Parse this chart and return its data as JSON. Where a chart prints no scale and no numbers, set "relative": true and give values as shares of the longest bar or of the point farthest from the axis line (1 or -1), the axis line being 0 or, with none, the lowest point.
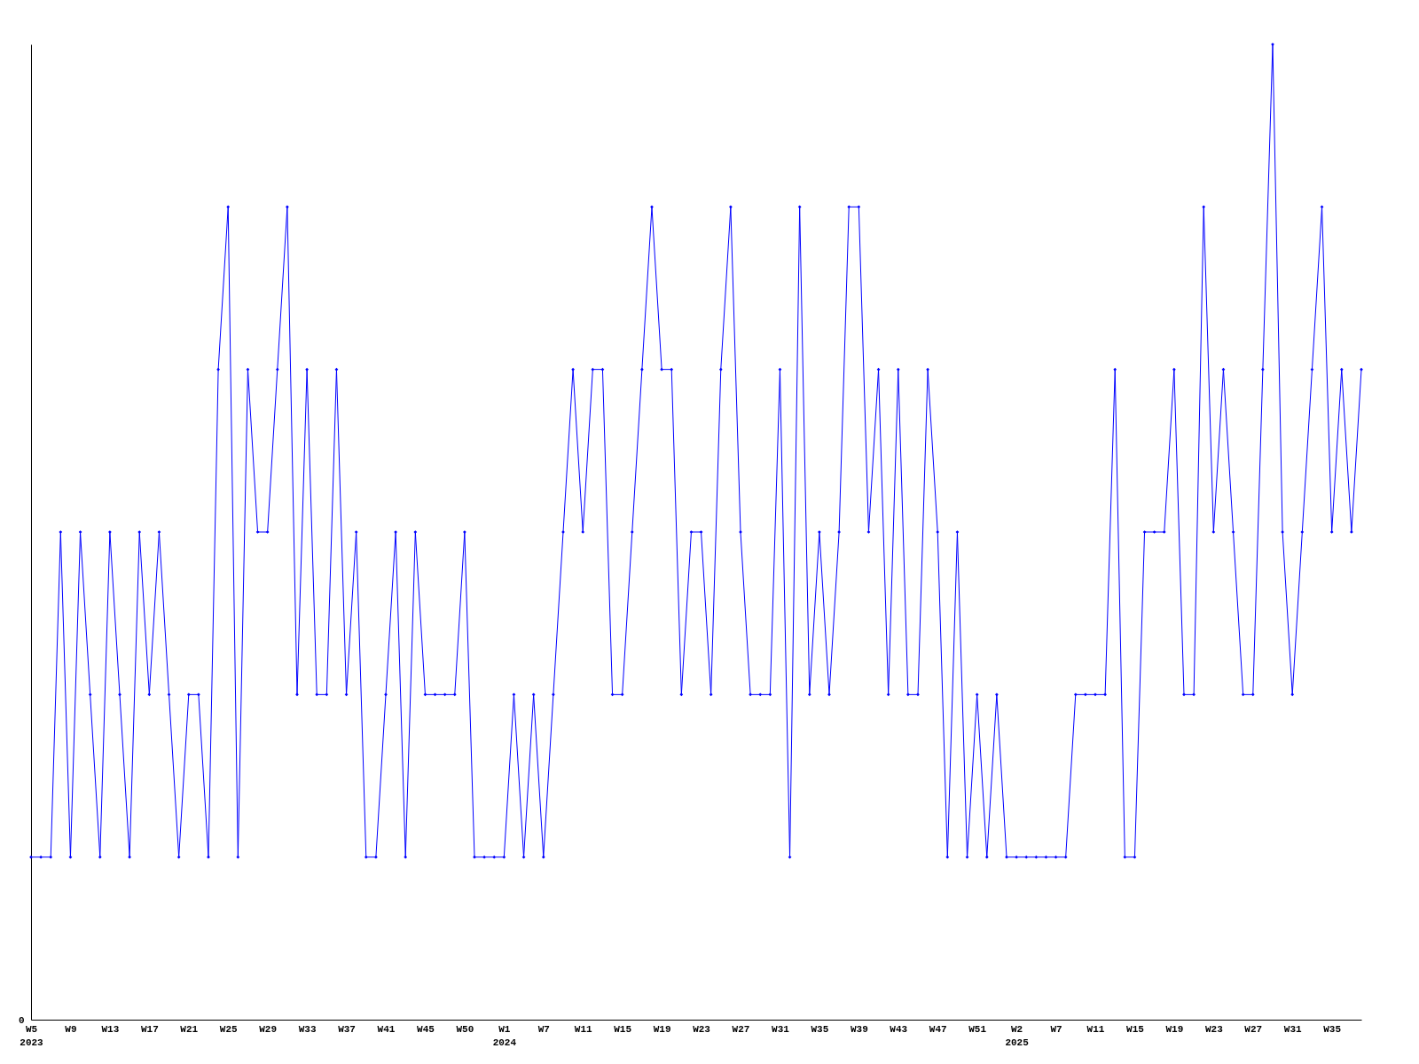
{
  "chart_data": {
    "type": "line",
    "relative": true,
    "marker": "diamond",
    "line_style": "solid",
    "grid": false,
    "annotations": [
      "0"
    ],
    "categories": [
      "W5\n2023",
      null,
      null,
      null,
      "W9",
      null,
      null,
      null,
      "W13",
      null,
      null,
      null,
      "W17",
      null,
      null,
      null,
      "W21",
      null,
      null,
      null,
      "W25",
      null,
      null,
      null,
      "W29",
      null,
      null,
      null,
      "W33",
      null,
      null,
      null,
      "W37",
      null,
      null,
      null,
      "W41",
      null,
      null,
      null,
      "W45",
      null,
      null,
      null,
      "W50",
      null,
      null,
      null,
      "W1\n2024",
      null,
      null,
      null,
      "W7",
      null,
      null,
      null,
      "W11",
      null,
      null,
      null,
      "W15",
      null,
      null,
      null,
      "W19",
      null,
      null,
      null,
      "W23",
      null,
      null,
      null,
      "W27",
      null,
      null,
      null,
      "W31",
      null,
      null,
      null,
      "W35",
      null,
      null,
      null,
      "W39",
      null,
      null,
      null,
      "W43",
      null,
      null,
      null,
      "W47",
      null,
      null,
      null,
      "W51",
      null,
      null,
      null,
      "W2\n2025",
      null,
      null,
      null,
      "W7",
      null,
      null,
      null,
      "W11",
      null,
      null,
      null,
      "W15",
      null,
      null,
      null,
      "W19",
      null,
      null,
      null,
      "W23",
      null,
      null,
      null,
      "W27",
      null,
      null,
      null,
      "W31",
      null,
      null,
      null,
      "W35",
      null,
      null,
      null
    ],
    "series": [
      {
        "color": "#0000ff",
        "values": [
          0.1667,
          0.1667,
          0.1667,
          0.5,
          0.1667,
          0.5,
          0.3333,
          0.1667,
          0.5,
          0.3333,
          0.1667,
          0.5,
          0.3333,
          0.5,
          0.3333,
          0.1667,
          0.3333,
          0.3333,
          0.1667,
          0.6667,
          0.8333,
          0.1667,
          0.6667,
          0.5,
          0.5,
          0.6667,
          0.8333,
          0.3333,
          0.6667,
          0.3333,
          0.3333,
          0.6667,
          0.3333,
          0.5,
          0.1667,
          0.1667,
          0.3333,
          0.5,
          0.1667,
          0.5,
          0.3333,
          0.3333,
          0.3333,
          0.3333,
          0.5,
          0.1667,
          0.1667,
          0.1667,
          0.1667,
          0.3333,
          0.1667,
          0.3333,
          0.1667,
          0.3333,
          0.5,
          0.6667,
          0.5,
          0.6667,
          0.6667,
          0.3333,
          0.3333,
          0.5,
          0.6667,
          0.8333,
          0.6667,
          0.6667,
          0.3333,
          0.5,
          0.5,
          0.3333,
          0.6667,
          0.8333,
          0.5,
          0.3333,
          0.3333,
          0.3333,
          0.6667,
          0.1667,
          0.8333,
          0.3333,
          0.5,
          0.3333,
          0.5,
          0.8333,
          0.8333,
          0.5,
          0.6667,
          0.3333,
          0.6667,
          0.3333,
          0.3333,
          0.6667,
          0.5,
          0.1667,
          0.5,
          0.1667,
          0.3333,
          0.1667,
          0.3333,
          0.1667,
          0.1667,
          0.1667,
          0.1667,
          0.1667,
          0.1667,
          0.1667,
          0.3333,
          0.3333,
          0.3333,
          0.3333,
          0.6667,
          0.1667,
          0.1667,
          0.5,
          0.5,
          0.5,
          0.6667,
          0.3333,
          0.3333,
          0.8333,
          0.5,
          0.6667,
          0.5,
          0.3333,
          0.3333,
          0.6667,
          1,
          0.5,
          0.3333,
          0.5,
          0.6667,
          0.8333,
          0.5,
          0.6667,
          0.5,
          0.6667
        ]
      }
    ]
  }
}
